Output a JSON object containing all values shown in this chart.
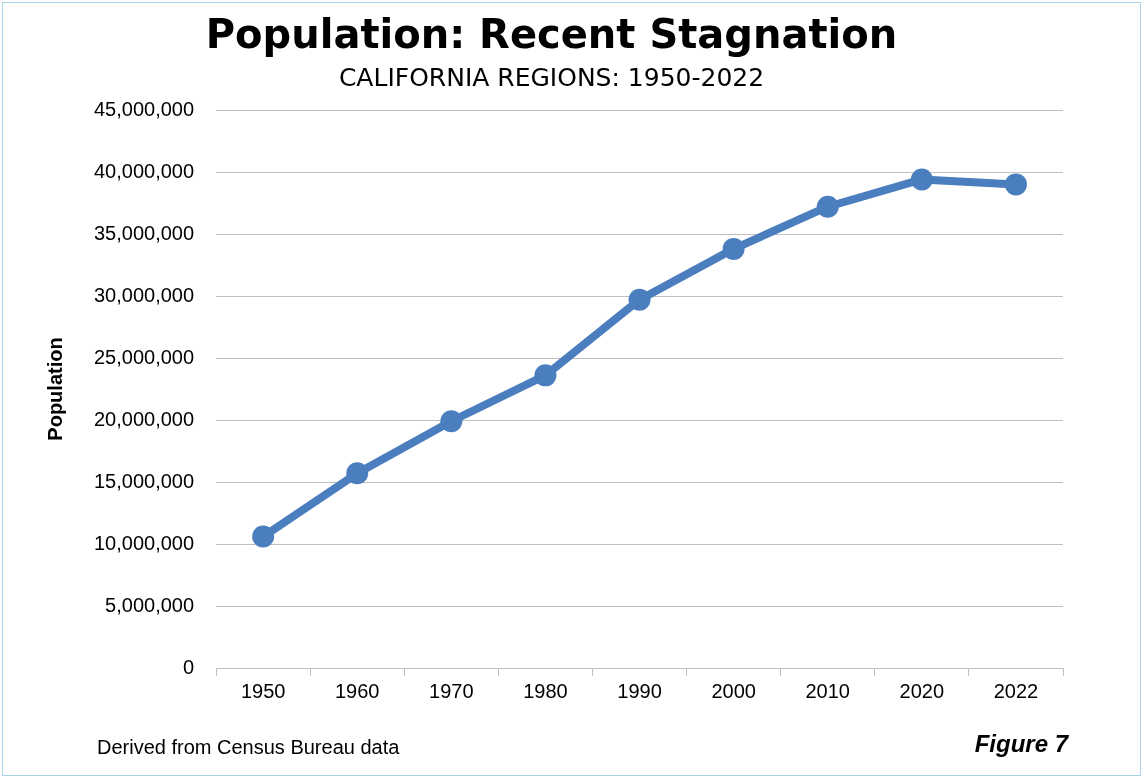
{
  "chart_data": {
    "type": "line",
    "title": "Population: Recent Stagnation",
    "subtitle": "CALIFORNIA REGIONS: 1950-2022",
    "ylabel": "Population",
    "categories": [
      "1950",
      "1960",
      "1970",
      "1980",
      "1990",
      "2000",
      "2010",
      "2020",
      "2022"
    ],
    "series": [
      {
        "color": "#4a7ebf",
        "values": [
          10600000,
          15700000,
          19900000,
          23600000,
          29700000,
          33800000,
          37200000,
          39400000,
          39000000
        ]
      }
    ],
    "ylim": [
      0,
      45000000
    ],
    "yticks": [
      0,
      {
        "value": 5000000,
        "label": "5,000,000"
      },
      {
        "value": 10000000,
        "label": "10,000,000"
      },
      {
        "value": 15000000,
        "label": "15,000,000"
      },
      {
        "value": 20000000,
        "label": "20,000,000"
      },
      {
        "value": 25000000,
        "label": "25,000,000"
      },
      {
        "value": 30000000,
        "label": "30,000,000"
      },
      {
        "value": 35000000,
        "label": "35,000,000"
      },
      {
        "value": 40000000,
        "label": "40,000,000"
      },
      {
        "value": 45000000,
        "label": "45,000,000"
      }
    ],
    "grid": "y",
    "legend": false,
    "marker": "circle",
    "line_style": "solid",
    "annotations": [
      "Derived from Census Bureau data",
      "Figure 7"
    ]
  }
}
